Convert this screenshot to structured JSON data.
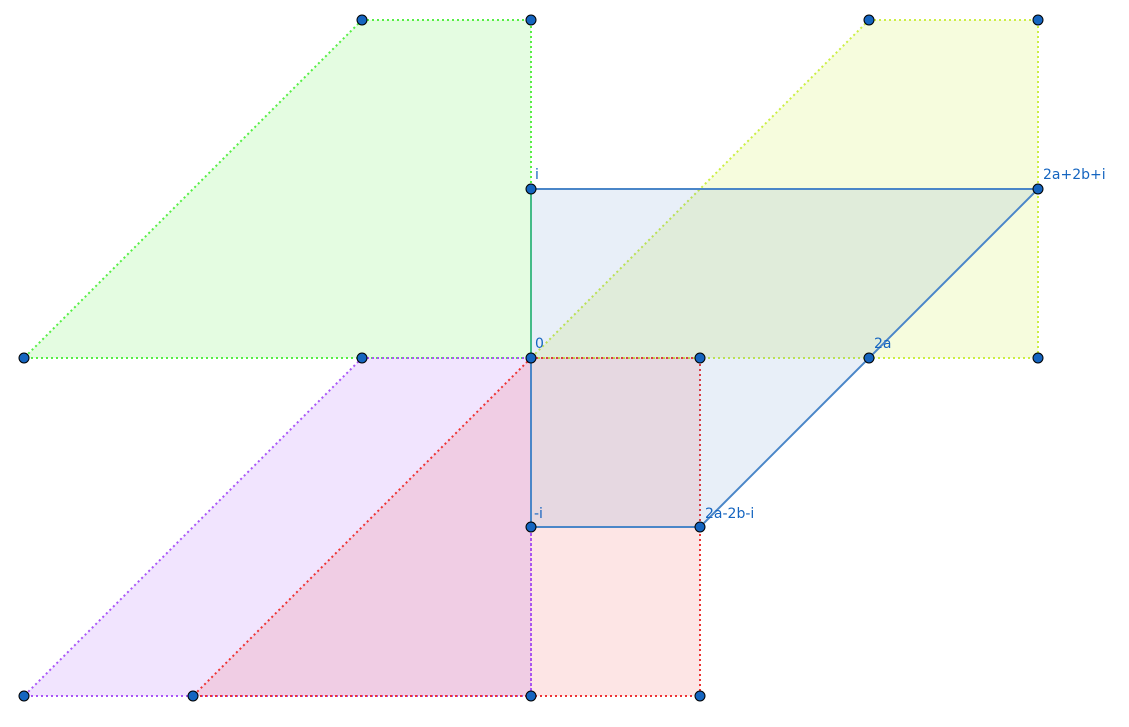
{
  "colors": {
    "background": "#ffffff",
    "blue": "#4a86c8",
    "green": "#55ee44",
    "yellow": "#ccee44",
    "purple": "#a855f7",
    "red": "#ee3333",
    "point": "#1565c0",
    "label": "#1565c0"
  },
  "labels": {
    "i": "i",
    "zero": "0",
    "two_a": "2a",
    "minus_i": "-i",
    "two_a_plus_two_b_plus_i": "2a+2b+i",
    "two_a_minus_two_b_minus_i": "2a-2b-i"
  }
}
